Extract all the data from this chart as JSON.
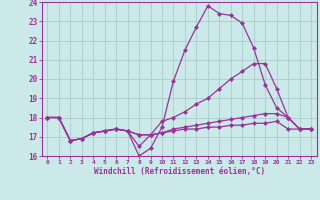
{
  "xlabel": "Windchill (Refroidissement éolien,°C)",
  "ylabel": "",
  "xlim": [
    -0.5,
    23.5
  ],
  "ylim": [
    16,
    24
  ],
  "yticks": [
    16,
    17,
    18,
    19,
    20,
    21,
    22,
    23,
    24
  ],
  "xticks": [
    0,
    1,
    2,
    3,
    4,
    5,
    6,
    7,
    8,
    9,
    10,
    11,
    12,
    13,
    14,
    15,
    16,
    17,
    18,
    19,
    20,
    21,
    22,
    23
  ],
  "background_color": "#cce9e9",
  "grid_color": "#aacccc",
  "line_color": "#993399",
  "line_width": 0.9,
  "marker": "D",
  "marker_size": 2.0,
  "series": [
    [
      18.0,
      18.0,
      16.8,
      16.9,
      17.2,
      17.3,
      17.4,
      17.3,
      16.0,
      16.4,
      17.5,
      19.9,
      21.5,
      22.7,
      23.8,
      23.4,
      23.3,
      22.9,
      21.6,
      19.7,
      18.5,
      18.0,
      17.4,
      17.4
    ],
    [
      18.0,
      18.0,
      16.8,
      16.9,
      17.2,
      17.3,
      17.4,
      17.3,
      16.5,
      17.1,
      17.8,
      18.0,
      18.3,
      18.7,
      19.0,
      19.5,
      20.0,
      20.4,
      20.8,
      20.8,
      19.5,
      18.0,
      17.4,
      17.4
    ],
    [
      18.0,
      18.0,
      16.8,
      16.9,
      17.2,
      17.3,
      17.4,
      17.3,
      17.1,
      17.1,
      17.2,
      17.4,
      17.5,
      17.6,
      17.7,
      17.8,
      17.9,
      18.0,
      18.1,
      18.2,
      18.2,
      18.0,
      17.4,
      17.4
    ],
    [
      18.0,
      18.0,
      16.8,
      16.9,
      17.2,
      17.3,
      17.4,
      17.3,
      17.1,
      17.1,
      17.2,
      17.3,
      17.4,
      17.4,
      17.5,
      17.5,
      17.6,
      17.6,
      17.7,
      17.7,
      17.8,
      17.4,
      17.4,
      17.4
    ]
  ]
}
